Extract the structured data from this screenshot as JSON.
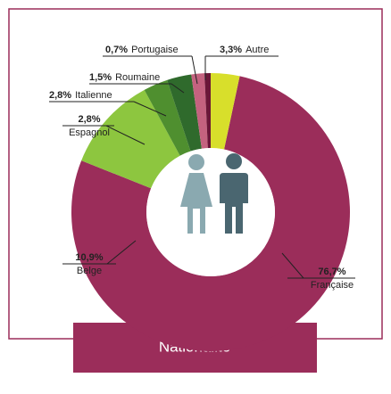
{
  "chart_data": {
    "type": "donut",
    "title": "Nationalité",
    "categories": [
      "Française",
      "Belge",
      "Espagnol",
      "Italienne",
      "Roumaine",
      "Portugaise",
      "Autre"
    ],
    "values": [
      76.7,
      10.9,
      2.8,
      2.8,
      1.5,
      0.7,
      3.3
    ],
    "value_labels": [
      "76,7%",
      "10,9%",
      "2,8%",
      "2,8%",
      "1,5%",
      "0,7%",
      "3,3%"
    ],
    "colors": [
      "#9b2d5a",
      "#8dc63f",
      "#4f8f2f",
      "#2f6a2c",
      "#c4627f",
      "#6b1738",
      "#d8df2b"
    ]
  }
}
